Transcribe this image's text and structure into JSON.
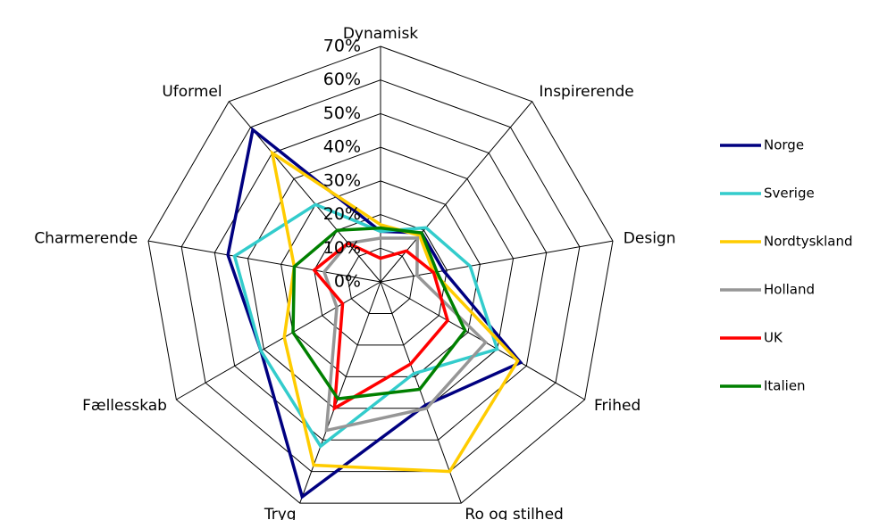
{
  "chart_data": {
    "type": "radar",
    "categories": [
      "Dynamisk",
      "Inspirerende",
      "Design",
      "Frihed",
      "Ro og stilhed",
      "Tryg",
      "Fællesskab",
      "Charmerende",
      "Uformel"
    ],
    "ylim": [
      0,
      70
    ],
    "yticks": [
      {
        "value": 0,
        "label": "0%"
      },
      {
        "value": 10,
        "label": "10%"
      },
      {
        "value": 20,
        "label": "20%"
      },
      {
        "value": 30,
        "label": "30%"
      },
      {
        "value": 40,
        "label": "40%"
      },
      {
        "value": 50,
        "label": "50%"
      },
      {
        "value": 60,
        "label": "60%"
      },
      {
        "value": 70,
        "label": "70%"
      }
    ],
    "grid": true,
    "legend": "right",
    "series": [
      {
        "name": "Norge",
        "color": "#000080",
        "values": [
          15,
          19,
          19,
          48,
          39,
          68,
          41,
          46,
          59
        ]
      },
      {
        "name": "Sverige",
        "color": "#33cccc",
        "values": [
          15,
          21,
          27,
          40,
          29,
          52,
          41,
          44,
          30
        ]
      },
      {
        "name": "Nordtyskland",
        "color": "#ffcc00",
        "values": [
          17,
          18,
          16,
          47,
          60,
          58,
          33,
          26,
          50
        ]
      },
      {
        "name": "Holland",
        "color": "#969696",
        "values": [
          13,
          17,
          11,
          36,
          40,
          47,
          15,
          17,
          15
        ]
      },
      {
        "name": "UK",
        "color": "#ff0000",
        "values": [
          7,
          12,
          16,
          23,
          26,
          40,
          13,
          20,
          15
        ]
      },
      {
        "name": "Italien",
        "color": "#008000",
        "values": [
          16,
          19,
          17,
          29,
          34,
          37,
          30,
          26,
          20
        ]
      }
    ]
  }
}
